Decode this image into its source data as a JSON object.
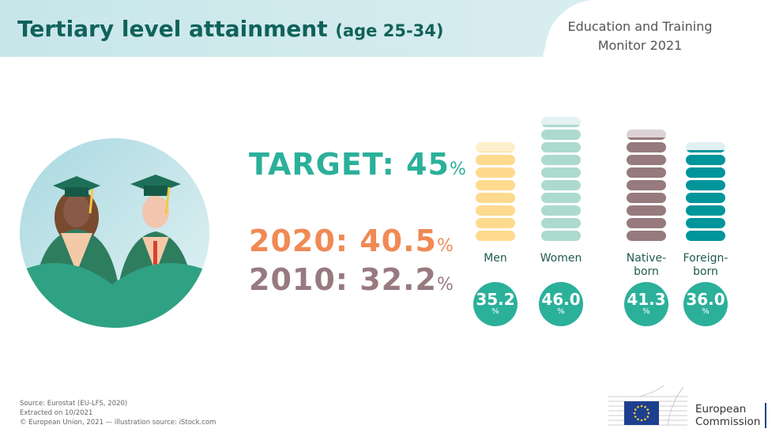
{
  "header": {
    "title": "Tertiary level attainment",
    "title_suffix": "(age 25-34)",
    "monitor_line1": "Education and Training",
    "monitor_line2": "Monitor 2021"
  },
  "headline": {
    "target_label": "TARGET: 45",
    "target_unit": "%",
    "y2020_label": "2020: 40.5",
    "y2020_unit": "%",
    "y2010_label": "2010: 32.2",
    "y2010_unit": "%"
  },
  "chart_data": {
    "type": "bar",
    "unit": "%",
    "segment_size": 5,
    "categories": [
      "Men",
      "Women",
      "Native-born",
      "Foreign-born"
    ],
    "label_lines": [
      [
        "Men"
      ],
      [
        "Women"
      ],
      [
        "Native-",
        "born"
      ],
      [
        "Foreign-",
        "born"
      ]
    ],
    "values": [
      35.2,
      46.0,
      41.3,
      36.0
    ],
    "value_labels": [
      "35.2",
      "46.0",
      "41.3",
      "36.0"
    ],
    "colors": [
      "#fdda8e",
      "#acdace",
      "#967a7d",
      "#00959b"
    ],
    "light_colors": [
      "#fef0cc",
      "#e3f2f3",
      "#ddd2d4",
      "#e0f1f3"
    ]
  },
  "footer": {
    "source": "Source: Eurostat (EU-LFS, 2020)",
    "extracted": "Extracted on 10/2021",
    "copyright": "© European Union, 2021 — illustration source: iStock.com"
  },
  "logo": {
    "line1": "European",
    "line2": "Commission"
  },
  "colors": {
    "accent": "#2bb09a",
    "title": "#10625a"
  }
}
